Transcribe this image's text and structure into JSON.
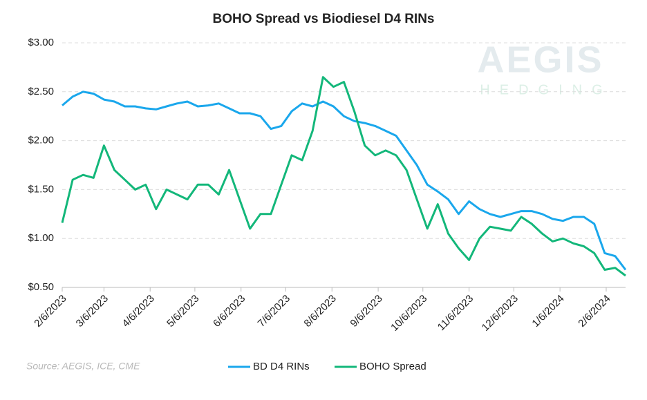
{
  "chart_data": {
    "type": "line",
    "title": "BOHO Spread vs Biodiesel D4 RINs",
    "logo": "AEGIS",
    "logo_subtitle": "HEDGING",
    "source": "Source: AEGIS, ICE, CME",
    "x": [
      "2/6/2023",
      "2/13/2023",
      "2/20/2023",
      "2/27/2023",
      "3/6/2023",
      "3/13/2023",
      "3/20/2023",
      "3/27/2023",
      "4/3/2023",
      "4/10/2023",
      "4/17/2023",
      "4/24/2023",
      "5/1/2023",
      "5/8/2023",
      "5/15/2023",
      "5/22/2023",
      "5/29/2023",
      "6/5/2023",
      "6/12/2023",
      "6/19/2023",
      "6/26/2023",
      "7/3/2023",
      "7/10/2023",
      "7/17/2023",
      "7/24/2023",
      "7/31/2023",
      "8/7/2023",
      "8/14/2023",
      "8/21/2023",
      "8/28/2023",
      "9/4/2023",
      "9/11/2023",
      "9/18/2023",
      "9/25/2023",
      "10/2/2023",
      "10/9/2023",
      "10/16/2023",
      "10/23/2023",
      "10/30/2023",
      "11/6/2023",
      "11/13/2023",
      "11/20/2023",
      "11/27/2023",
      "12/4/2023",
      "12/11/2023",
      "12/18/2023",
      "12/25/2023",
      "1/1/2024",
      "1/8/2024",
      "1/15/2024",
      "1/22/2024",
      "1/29/2024",
      "2/5/2024",
      "2/12/2024",
      "2/19/2024"
    ],
    "series": [
      {
        "name": "BD D4 RINs",
        "color": "#1aa7ec",
        "values": [
          2.36,
          2.45,
          2.5,
          2.48,
          2.42,
          2.4,
          2.35,
          2.35,
          2.33,
          2.32,
          2.35,
          2.38,
          2.4,
          2.35,
          2.36,
          2.38,
          2.33,
          2.28,
          2.28,
          2.25,
          2.12,
          2.15,
          2.3,
          2.38,
          2.35,
          2.4,
          2.35,
          2.25,
          2.2,
          2.18,
          2.15,
          2.1,
          2.05,
          1.9,
          1.75,
          1.55,
          1.48,
          1.4,
          1.25,
          1.38,
          1.3,
          1.25,
          1.22,
          1.25,
          1.28,
          1.28,
          1.25,
          1.2,
          1.18,
          1.22,
          1.22,
          1.15,
          0.85,
          0.82,
          0.68
        ]
      },
      {
        "name": "BOHO Spread",
        "color": "#13b77a",
        "values": [
          1.16,
          1.6,
          1.65,
          1.62,
          1.95,
          1.7,
          1.6,
          1.5,
          1.55,
          1.3,
          1.5,
          1.45,
          1.4,
          1.55,
          1.55,
          1.45,
          1.7,
          1.4,
          1.1,
          1.25,
          1.25,
          1.55,
          1.85,
          1.8,
          2.1,
          2.65,
          2.55,
          2.6,
          2.3,
          1.95,
          1.85,
          1.9,
          1.85,
          1.7,
          1.4,
          1.1,
          1.35,
          1.05,
          0.9,
          0.78,
          1.0,
          1.12,
          1.1,
          1.08,
          1.22,
          1.15,
          1.05,
          0.97,
          1.0,
          0.95,
          0.92,
          0.85,
          0.68,
          0.7,
          0.62
        ]
      }
    ],
    "xlim": [
      "2/6/2023",
      "2/19/2024"
    ],
    "xticks": [
      "2/6/2023",
      "3/6/2023",
      "4/6/2023",
      "5/6/2023",
      "6/6/2023",
      "7/6/2023",
      "8/6/2023",
      "9/6/2023",
      "10/6/2023",
      "11/6/2023",
      "12/6/2023",
      "1/6/2024",
      "2/6/2024"
    ],
    "ylim": [
      0.5,
      3.0
    ],
    "yticks": [
      {
        "value": 0.5,
        "label": "$0.50"
      },
      {
        "value": 1.0,
        "label": "$1.00"
      },
      {
        "value": 1.5,
        "label": "$1.50"
      },
      {
        "value": 2.0,
        "label": "$2.00"
      },
      {
        "value": 2.5,
        "label": "$2.50"
      },
      {
        "value": 3.0,
        "label": "$3.00"
      }
    ],
    "grid": true,
    "legend": "bottom"
  }
}
